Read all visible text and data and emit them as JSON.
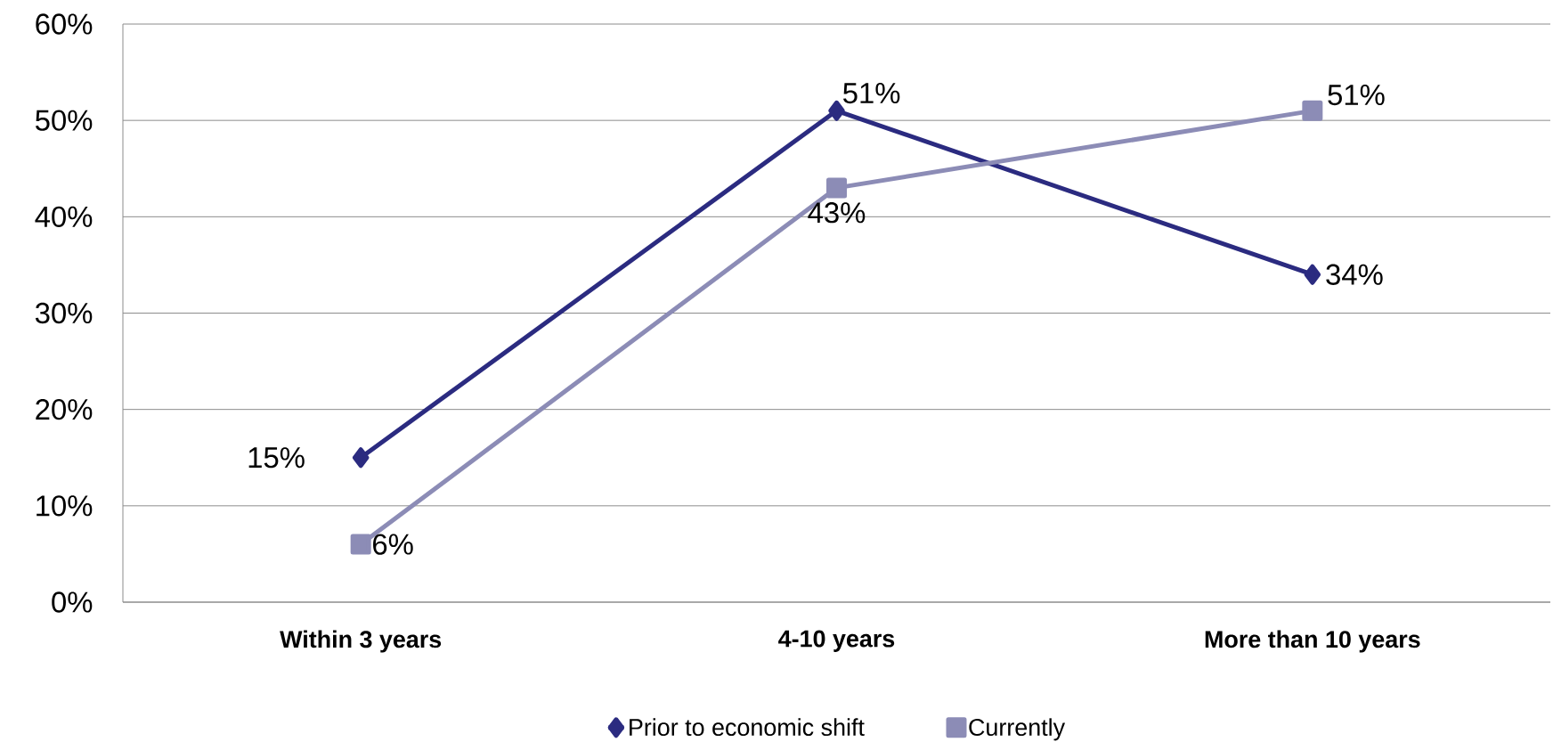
{
  "chart_data": {
    "type": "line",
    "categories": [
      "Within 3 years",
      "4-10 years",
      "More than 10 years"
    ],
    "series": [
      {
        "name": "Prior to economic shift",
        "color": "#2b2b80",
        "values": [
          15,
          51,
          34
        ],
        "marker": "diamond",
        "value_labels": [
          "15%",
          "51%",
          "34%"
        ]
      },
      {
        "name": "Currently",
        "color": "#8c8cb6",
        "values": [
          6,
          43,
          51
        ],
        "marker": "square",
        "value_labels": [
          "6%",
          "43%",
          "51%"
        ]
      }
    ],
    "ylim": [
      0,
      60
    ],
    "yticks": [
      {
        "value": 0,
        "label": "0%"
      },
      {
        "value": 10,
        "label": "10%"
      },
      {
        "value": 20,
        "label": "20%"
      },
      {
        "value": 30,
        "label": "30%"
      },
      {
        "value": 40,
        "label": "40%"
      },
      {
        "value": 50,
        "label": "50%"
      },
      {
        "value": 60,
        "label": "60%"
      }
    ],
    "grid": "y",
    "legend": "bottom",
    "line_style": "solid"
  }
}
